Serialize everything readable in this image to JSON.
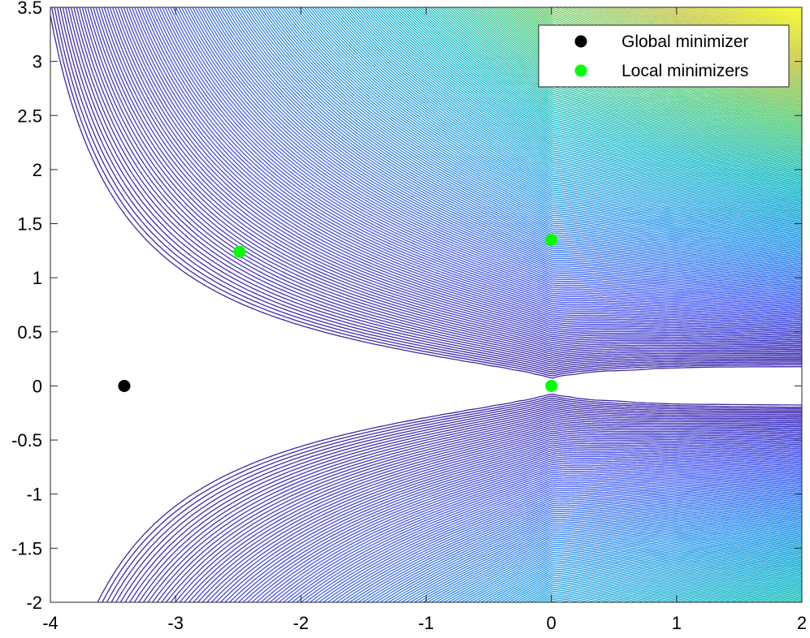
{
  "chart_data": {
    "type": "scatter",
    "title": "",
    "xlabel": "",
    "ylabel": "",
    "xlim": [
      -4,
      2
    ],
    "ylim": [
      -2,
      3.5
    ],
    "x_ticks": [
      "-4",
      "-3",
      "-2",
      "-1",
      "0",
      "1",
      "2"
    ],
    "y_ticks": [
      "3.5",
      "3",
      "2.5",
      "2",
      "1.5",
      "1",
      "0.5",
      "0",
      "-0.5",
      "-1",
      "-1.5",
      "-2"
    ],
    "grid": false,
    "legend_position": "top-right",
    "background": "contour plot of an objective function (parula colormap, low values blue-violet, high values yellow toward the lower right)",
    "series": [
      {
        "name": "Global minimizer",
        "color": "#000000",
        "points": [
          {
            "x": -3.41,
            "y": 0.0
          }
        ]
      },
      {
        "name": "Local minimizers",
        "color": "#00ff00",
        "points": [
          {
            "x": -2.49,
            "y": 1.24
          },
          {
            "x": 0.0,
            "y": 1.35
          },
          {
            "x": 0.0,
            "y": 0.0
          }
        ]
      }
    ]
  }
}
